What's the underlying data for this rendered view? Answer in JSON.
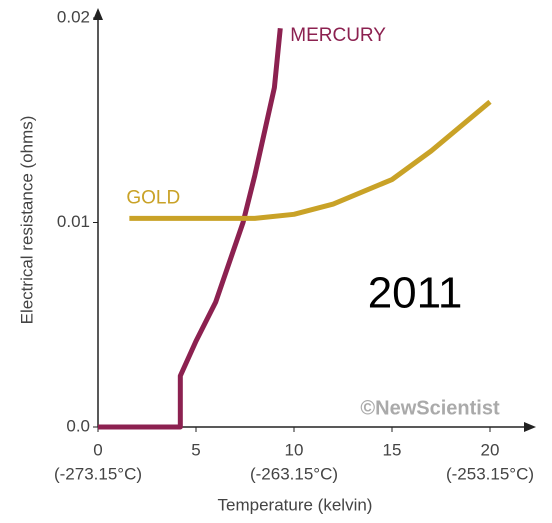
{
  "chart_data": {
    "type": "line",
    "y_label": "Electrical resistance (ohms)",
    "x_label": "Temperature (kelvin)",
    "xlim": [
      0,
      20
    ],
    "ylim": [
      0,
      0.02
    ],
    "xticks": [
      0,
      5,
      10,
      15,
      20
    ],
    "yticks": [
      {
        "value": 0,
        "label": "0.0"
      },
      0.01,
      0.02
    ],
    "xtick_sublabels": [
      {
        "value": 0,
        "label": "(-273.15°C)"
      },
      {
        "value": 10,
        "label": "(-263.15°C)"
      },
      {
        "value": 20,
        "label": "(-253.15°C)"
      }
    ],
    "series": [
      {
        "name": "MERCURY",
        "color": "#8c2150",
        "x": [
          0,
          4.2,
          4.2,
          5,
          6,
          7.4,
          8,
          9,
          9.3
        ],
        "values": [
          0,
          0,
          0.0025,
          0.0042,
          0.0061,
          0.01,
          0.0123,
          0.0166,
          0.0195
        ]
      },
      {
        "name": "GOLD",
        "color": "#c9a227",
        "x": [
          1.6,
          4,
          6,
          8,
          10,
          12,
          15,
          17,
          19,
          20
        ],
        "values": [
          0.0102,
          0.0102,
          0.0102,
          0.0102,
          0.0104,
          0.0109,
          0.0121,
          0.0135,
          0.0151,
          0.0159
        ]
      }
    ],
    "annotations": [
      "2011",
      "©NewScientist"
    ]
  }
}
